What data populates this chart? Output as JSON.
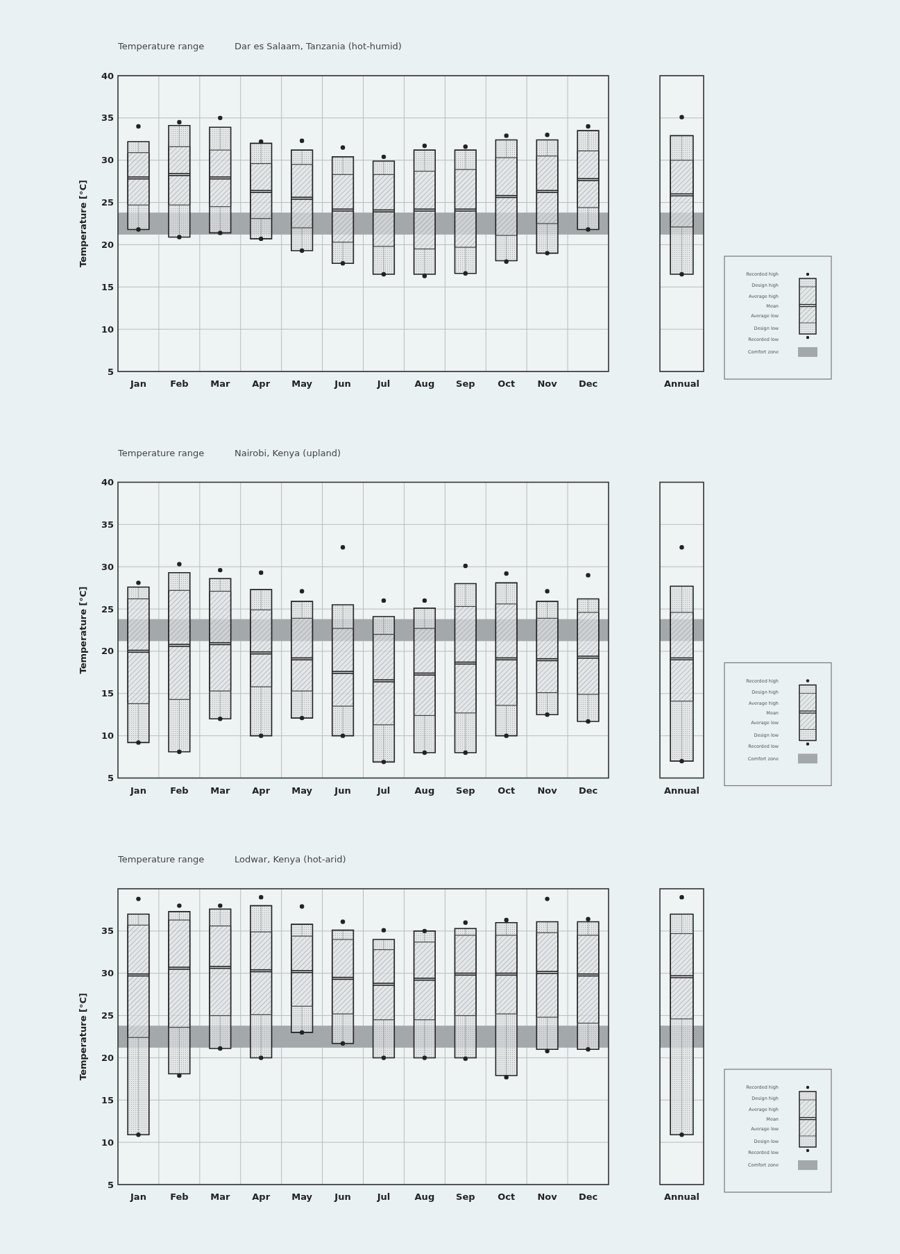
{
  "chart_data": [
    {
      "type": "box",
      "title": "Temperature range",
      "subtitle": "Dar es Salaam, Tanzania (hot-humid)",
      "ylabel": "Temperature [°C]",
      "categories": [
        "Jan",
        "Feb",
        "Mar",
        "Apr",
        "May",
        "Jun",
        "Jul",
        "Aug",
        "Sep",
        "Oct",
        "Nov",
        "Dec"
      ],
      "ylim": [
        5,
        40
      ],
      "yticks": [
        5,
        10,
        15,
        20,
        25,
        30,
        35,
        40
      ],
      "grid": true,
      "bands": [
        {
          "axis": "y",
          "from": 21.2,
          "to": 23.8,
          "color": "#a3a8ab"
        }
      ],
      "boxes": [
        {
          "low": 21.8,
          "q1": 24.7,
          "median": 27.9,
          "q3": 30.9,
          "high": 32.2,
          "outliers": [
            34.0,
            21.8
          ]
        },
        {
          "low": 20.9,
          "q1": 24.7,
          "median": 28.3,
          "q3": 31.6,
          "high": 34.1,
          "outliers": [
            34.5,
            20.9
          ]
        },
        {
          "low": 21.4,
          "q1": 24.5,
          "median": 27.9,
          "q3": 31.2,
          "high": 33.9,
          "outliers": [
            35.0,
            21.4
          ]
        },
        {
          "low": 20.7,
          "q1": 23.1,
          "median": 26.3,
          "q3": 29.6,
          "high": 32.0,
          "outliers": [
            32.2,
            20.7
          ]
        },
        {
          "low": 19.3,
          "q1": 22.0,
          "median": 25.5,
          "q3": 29.5,
          "high": 31.2,
          "outliers": [
            32.3,
            19.3
          ]
        },
        {
          "low": 17.8,
          "q1": 20.3,
          "median": 24.1,
          "q3": 28.3,
          "high": 30.4,
          "outliers": [
            31.5,
            17.8
          ]
        },
        {
          "low": 16.5,
          "q1": 19.8,
          "median": 24.0,
          "q3": 28.3,
          "high": 29.9,
          "outliers": [
            30.4,
            16.5
          ]
        },
        {
          "low": 16.5,
          "q1": 19.5,
          "median": 24.1,
          "q3": 28.7,
          "high": 31.2,
          "outliers": [
            31.7,
            16.3
          ]
        },
        {
          "low": 16.6,
          "q1": 19.7,
          "median": 24.1,
          "q3": 28.9,
          "high": 31.2,
          "outliers": [
            31.6,
            16.6
          ]
        },
        {
          "low": 18.1,
          "q1": 21.1,
          "median": 25.7,
          "q3": 30.3,
          "high": 32.4,
          "outliers": [
            32.9,
            18.0
          ]
        },
        {
          "low": 19.0,
          "q1": 22.5,
          "median": 26.3,
          "q3": 30.5,
          "high": 32.4,
          "outliers": [
            33.0,
            19.0
          ]
        },
        {
          "low": 21.8,
          "q1": 24.4,
          "median": 27.7,
          "q3": 31.1,
          "high": 33.5,
          "outliers": [
            34.0,
            21.8
          ]
        }
      ]
    },
    {
      "type": "box",
      "categories": [
        "Annual"
      ],
      "ylim": [
        5,
        40
      ],
      "yticks": [
        5,
        10,
        15,
        20,
        25,
        30,
        35,
        40
      ],
      "grid": "y",
      "tick_labels": "x",
      "bands": [
        {
          "axis": "y",
          "from": 21.2,
          "to": 23.8,
          "color": "#a3a8ab"
        }
      ],
      "boxes": [
        {
          "low": 16.5,
          "q1": 22.1,
          "median": 25.9,
          "q3": 30.0,
          "high": 32.9,
          "outliers": [
            35.1,
            16.5
          ]
        }
      ]
    },
    {
      "type": "other",
      "annotations": [
        "Recorded high",
        "Design high",
        "Average high",
        "Mean",
        "Average low",
        "Design low",
        "Recorded low",
        "Comfort zone"
      ]
    },
    {
      "type": "box",
      "title": "Temperature range",
      "subtitle": "Nairobi, Kenya (upland)",
      "ylabel": "Temperature [°C]",
      "categories": [
        "Jan",
        "Feb",
        "Mar",
        "Apr",
        "May",
        "Jun",
        "Jul",
        "Aug",
        "Sep",
        "Oct",
        "Nov",
        "Dec"
      ],
      "ylim": [
        5,
        40
      ],
      "yticks": [
        5,
        10,
        15,
        20,
        25,
        30,
        35,
        40
      ],
      "grid": true,
      "bands": [
        {
          "axis": "y",
          "from": 21.2,
          "to": 23.8,
          "color": "#a3a8ab"
        }
      ],
      "boxes": [
        {
          "low": 9.2,
          "q1": 13.8,
          "median": 20.0,
          "q3": 26.2,
          "high": 27.6,
          "outliers": [
            28.1,
            9.2
          ]
        },
        {
          "low": 8.1,
          "q1": 14.3,
          "median": 20.7,
          "q3": 27.2,
          "high": 29.3,
          "outliers": [
            30.3,
            8.1
          ]
        },
        {
          "low": 12.0,
          "q1": 15.3,
          "median": 20.9,
          "q3": 27.1,
          "high": 28.6,
          "outliers": [
            29.6,
            12.0
          ]
        },
        {
          "low": 10.0,
          "q1": 15.8,
          "median": 19.8,
          "q3": 24.9,
          "high": 27.3,
          "outliers": [
            29.3,
            10.0
          ]
        },
        {
          "low": 12.1,
          "q1": 15.3,
          "median": 19.1,
          "q3": 23.9,
          "high": 25.9,
          "outliers": [
            27.1,
            12.1
          ]
        },
        {
          "low": 10.0,
          "q1": 13.5,
          "median": 17.5,
          "q3": 22.7,
          "high": 25.5,
          "outliers": [
            32.3,
            10.0
          ]
        },
        {
          "low": 6.9,
          "q1": 11.3,
          "median": 16.5,
          "q3": 22.0,
          "high": 24.1,
          "outliers": [
            26.0,
            6.9
          ]
        },
        {
          "low": 8.0,
          "q1": 12.4,
          "median": 17.3,
          "q3": 22.7,
          "high": 25.1,
          "outliers": [
            26.0,
            8.0
          ]
        },
        {
          "low": 8.0,
          "q1": 12.7,
          "median": 18.6,
          "q3": 25.3,
          "high": 28.0,
          "outliers": [
            30.1,
            8.0
          ]
        },
        {
          "low": 10.0,
          "q1": 13.6,
          "median": 19.1,
          "q3": 25.6,
          "high": 28.1,
          "outliers": [
            29.2,
            10.0
          ]
        },
        {
          "low": 12.5,
          "q1": 15.1,
          "median": 19.0,
          "q3": 23.9,
          "high": 25.9,
          "outliers": [
            27.1,
            12.5
          ]
        },
        {
          "low": 11.7,
          "q1": 14.9,
          "median": 19.3,
          "q3": 24.6,
          "high": 26.2,
          "outliers": [
            29.0,
            11.7
          ]
        }
      ]
    },
    {
      "type": "box",
      "categories": [
        "Annual"
      ],
      "ylim": [
        5,
        40
      ],
      "yticks": [
        5,
        10,
        15,
        20,
        25,
        30,
        35,
        40
      ],
      "grid": "y",
      "tick_labels": "x",
      "bands": [
        {
          "axis": "y",
          "from": 21.2,
          "to": 23.8,
          "color": "#a3a8ab"
        }
      ],
      "boxes": [
        {
          "low": 7.0,
          "q1": 14.1,
          "median": 19.1,
          "q3": 24.6,
          "high": 27.7,
          "outliers": [
            32.3,
            7.0
          ]
        }
      ]
    },
    {
      "type": "other",
      "annotations": [
        "Recorded high",
        "Design high",
        "Average high",
        "Mean",
        "Average low",
        "Design low",
        "Recorded low",
        "Comfort zone"
      ]
    },
    {
      "type": "box",
      "title": "Temperature range",
      "subtitle": "Lodwar, Kenya (hot-arid)",
      "ylabel": "Temperature [°C]",
      "categories": [
        "Jan",
        "Feb",
        "Mar",
        "Apr",
        "May",
        "Jun",
        "Jul",
        "Aug",
        "Sep",
        "Oct",
        "Nov",
        "Dec"
      ],
      "ylim": [
        5,
        40
      ],
      "yticks": [
        5,
        10,
        15,
        20,
        25,
        30,
        35
      ],
      "grid": true,
      "bands": [
        {
          "axis": "y",
          "from": 21.2,
          "to": 23.8,
          "color": "#a3a8ab"
        }
      ],
      "boxes": [
        {
          "low": 10.9,
          "q1": 22.4,
          "median": 29.8,
          "q3": 35.7,
          "high": 37.0,
          "outliers": [
            38.8,
            10.9
          ]
        },
        {
          "low": 18.1,
          "q1": 23.6,
          "median": 30.6,
          "q3": 36.3,
          "high": 37.3,
          "outliers": [
            38.0,
            17.9
          ]
        },
        {
          "low": 21.1,
          "q1": 25.0,
          "median": 30.7,
          "q3": 35.6,
          "high": 37.6,
          "outliers": [
            38.0,
            21.1
          ]
        },
        {
          "low": 20.0,
          "q1": 25.1,
          "median": 30.3,
          "q3": 34.9,
          "high": 38.0,
          "outliers": [
            39.0,
            20.0
          ]
        },
        {
          "low": 23.0,
          "q1": 26.1,
          "median": 30.2,
          "q3": 34.4,
          "high": 35.8,
          "outliers": [
            37.9,
            23.0
          ]
        },
        {
          "low": 21.7,
          "q1": 25.2,
          "median": 29.4,
          "q3": 34.0,
          "high": 35.1,
          "outliers": [
            36.1,
            21.7
          ]
        },
        {
          "low": 20.0,
          "q1": 24.5,
          "median": 28.7,
          "q3": 32.8,
          "high": 34.0,
          "outliers": [
            35.1,
            20.0
          ]
        },
        {
          "low": 20.0,
          "q1": 24.5,
          "median": 29.3,
          "q3": 33.7,
          "high": 35.0,
          "outliers": [
            35.0,
            20.0
          ]
        },
        {
          "low": 20.0,
          "q1": 25.0,
          "median": 29.9,
          "q3": 34.5,
          "high": 35.3,
          "outliers": [
            36.0,
            19.9
          ]
        },
        {
          "low": 17.9,
          "q1": 25.2,
          "median": 29.9,
          "q3": 34.5,
          "high": 36.0,
          "outliers": [
            36.3,
            17.7
          ]
        },
        {
          "low": 21.0,
          "q1": 24.8,
          "median": 30.1,
          "q3": 34.8,
          "high": 36.1,
          "outliers": [
            38.8,
            20.8
          ]
        },
        {
          "low": 21.0,
          "q1": 24.1,
          "median": 29.8,
          "q3": 34.5,
          "high": 36.1,
          "outliers": [
            36.4,
            21.0
          ]
        }
      ]
    },
    {
      "type": "box",
      "categories": [
        "Annual"
      ],
      "ylim": [
        5,
        40
      ],
      "yticks": [
        5,
        10,
        15,
        20,
        25,
        30,
        35
      ],
      "grid": "y",
      "tick_labels": "x",
      "bands": [
        {
          "axis": "y",
          "from": 21.2,
          "to": 23.8,
          "color": "#a3a8ab"
        }
      ],
      "boxes": [
        {
          "low": 10.9,
          "q1": 24.6,
          "median": 29.6,
          "q3": 34.7,
          "high": 37.0,
          "outliers": [
            39.0,
            10.9
          ]
        }
      ]
    },
    {
      "type": "other",
      "annotations": [
        "Recorded high",
        "Design high",
        "Average high",
        "Mean",
        "Average low",
        "Design low",
        "Recorded low",
        "Comfort zone"
      ]
    }
  ]
}
